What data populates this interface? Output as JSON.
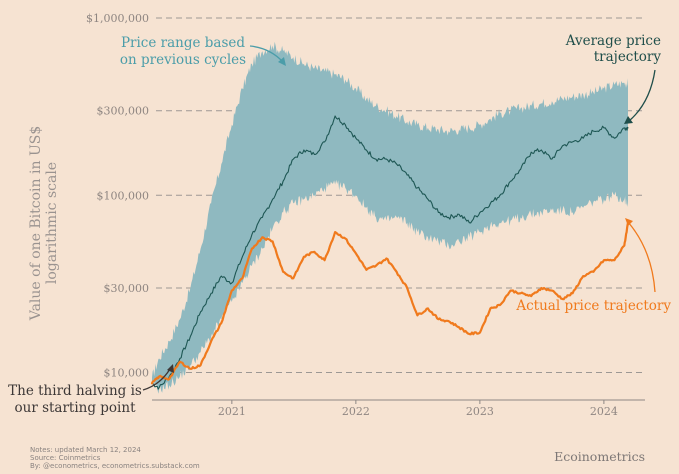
{
  "chart_data": {
    "type": "line",
    "y_scale": "log",
    "ylabel": "Value of one Bitcoin in US$ logarithmic scale",
    "ylabel_lines": [
      "Value of one Bitcoin in US$",
      "logarithmic scale"
    ],
    "ylim": [
      7000,
      1000000
    ],
    "xlim": [
      "2020-05-11",
      "2024-05-01"
    ],
    "y_ticks": [
      {
        "value": 10000,
        "label": "$10,000"
      },
      {
        "value": 30000,
        "label": "$30,000"
      },
      {
        "value": 100000,
        "label": "$100,000"
      },
      {
        "value": 300000,
        "label": "$300,000"
      },
      {
        "value": 1000000,
        "label": "$1,000,000"
      }
    ],
    "x_ticks": [
      {
        "value": "2021-01-01",
        "label": "2021"
      },
      {
        "value": "2022-01-01",
        "label": "2022"
      },
      {
        "value": "2023-01-01",
        "label": "2023"
      },
      {
        "value": "2024-01-01",
        "label": "2024"
      }
    ],
    "grid": {
      "y": true,
      "x": false
    },
    "colors": {
      "band": "#8fb9c0",
      "average": "#1e5754",
      "actual": "#f07a1d",
      "grid": "#9d9894",
      "axis": "#8d8784",
      "annotation_teal": "#4b9da9",
      "annotation_dark": "#1f4e4a",
      "annotation_orange": "#f07a1d",
      "annotation_black": "#3d3837"
    },
    "series": [
      {
        "key": "band",
        "type": "area",
        "x": [
          "2020-05-11",
          "2020-06-01",
          "2020-07-01",
          "2020-08-01",
          "2020-09-01",
          "2020-10-01",
          "2020-11-01",
          "2020-12-01",
          "2021-01-01",
          "2021-02-01",
          "2021-03-01",
          "2021-04-01",
          "2021-05-01",
          "2021-06-01",
          "2021-07-01",
          "2021-08-01",
          "2021-09-01",
          "2021-10-01",
          "2021-11-01",
          "2021-12-01",
          "2022-01-01",
          "2022-02-01",
          "2022-03-01",
          "2022-04-01",
          "2022-05-01",
          "2022-06-01",
          "2022-07-01",
          "2022-08-01",
          "2022-09-01",
          "2022-10-01",
          "2022-11-01",
          "2022-12-01",
          "2023-01-01",
          "2023-02-01",
          "2023-03-01",
          "2023-04-01",
          "2023-05-01",
          "2023-06-01",
          "2023-07-01",
          "2023-08-01",
          "2023-09-01",
          "2023-10-01",
          "2023-11-01",
          "2023-12-01",
          "2024-01-01",
          "2024-02-01",
          "2024-03-01",
          "2024-03-12"
        ],
        "low": [
          8600,
          8000,
          8500,
          9500,
          11000,
          13000,
          16000,
          20000,
          25000,
          32000,
          40000,
          50000,
          65000,
          80000,
          90000,
          95000,
          100000,
          110000,
          115000,
          110000,
          100000,
          85000,
          75000,
          72000,
          75000,
          70000,
          62000,
          58000,
          55000,
          52000,
          55000,
          58000,
          62000,
          68000,
          70000,
          72000,
          75000,
          78000,
          80000,
          82000,
          82000,
          80000,
          85000,
          92000,
          95000,
          100000,
          95000,
          90000
        ],
        "high": [
          9400,
          12000,
          15000,
          20000,
          30000,
          50000,
          90000,
          150000,
          250000,
          400000,
          550000,
          650000,
          700000,
          650000,
          600000,
          550000,
          520000,
          500000,
          480000,
          450000,
          400000,
          350000,
          320000,
          300000,
          280000,
          260000,
          250000,
          240000,
          235000,
          230000,
          235000,
          240000,
          250000,
          270000,
          290000,
          300000,
          310000,
          320000,
          330000,
          340000,
          350000,
          360000,
          370000,
          380000,
          400000,
          420000,
          430000,
          430000
        ]
      },
      {
        "key": "average",
        "name": "Average price trajectory",
        "type": "line",
        "x": [
          "2020-05-11",
          "2020-06-01",
          "2020-07-01",
          "2020-08-01",
          "2020-09-01",
          "2020-10-01",
          "2020-11-01",
          "2020-12-01",
          "2021-01-01",
          "2021-02-01",
          "2021-03-01",
          "2021-04-01",
          "2021-05-01",
          "2021-06-01",
          "2021-07-01",
          "2021-08-01",
          "2021-09-01",
          "2021-10-01",
          "2021-11-01",
          "2021-12-01",
          "2022-01-01",
          "2022-02-01",
          "2022-03-01",
          "2022-04-01",
          "2022-05-01",
          "2022-06-01",
          "2022-07-01",
          "2022-08-01",
          "2022-09-01",
          "2022-10-01",
          "2022-11-01",
          "2022-12-01",
          "2023-01-01",
          "2023-02-01",
          "2023-03-01",
          "2023-04-01",
          "2023-05-01",
          "2023-06-01",
          "2023-07-01",
          "2023-08-01",
          "2023-09-01",
          "2023-10-01",
          "2023-11-01",
          "2023-12-01",
          "2024-01-01",
          "2024-02-01",
          "2024-03-01",
          "2024-03-12"
        ],
        "values": [
          8700,
          8200,
          9500,
          12000,
          16000,
          22000,
          28000,
          35000,
          32000,
          45000,
          60000,
          75000,
          95000,
          120000,
          160000,
          180000,
          170000,
          200000,
          280000,
          250000,
          210000,
          180000,
          160000,
          160000,
          150000,
          130000,
          110000,
          95000,
          80000,
          75000,
          78000,
          70000,
          80000,
          90000,
          100000,
          120000,
          140000,
          175000,
          180000,
          160000,
          190000,
          200000,
          210000,
          230000,
          240000,
          210000,
          240000,
          240000
        ]
      },
      {
        "key": "actual",
        "name": "Actual price trajectory",
        "type": "line",
        "x": [
          "2020-05-11",
          "2020-06-01",
          "2020-07-01",
          "2020-08-01",
          "2020-09-01",
          "2020-10-01",
          "2020-11-01",
          "2020-12-01",
          "2021-01-01",
          "2021-02-01",
          "2021-03-01",
          "2021-04-01",
          "2021-05-01",
          "2021-06-01",
          "2021-07-01",
          "2021-08-01",
          "2021-09-01",
          "2021-10-01",
          "2021-11-01",
          "2021-12-01",
          "2022-01-01",
          "2022-02-01",
          "2022-03-01",
          "2022-04-01",
          "2022-05-01",
          "2022-06-01",
          "2022-07-01",
          "2022-08-01",
          "2022-09-01",
          "2022-10-01",
          "2022-11-01",
          "2022-12-01",
          "2023-01-01",
          "2023-02-01",
          "2023-03-01",
          "2023-04-01",
          "2023-05-01",
          "2023-06-01",
          "2023-07-01",
          "2023-08-01",
          "2023-09-01",
          "2023-10-01",
          "2023-11-01",
          "2023-12-01",
          "2024-01-01",
          "2024-02-01",
          "2024-03-01",
          "2024-03-12"
        ],
        "values": [
          8700,
          9500,
          9200,
          11500,
          10500,
          11000,
          15000,
          19000,
          29000,
          34000,
          50000,
          58000,
          55000,
          37000,
          34000,
          45000,
          48000,
          43000,
          62000,
          57000,
          47000,
          38000,
          40000,
          44000,
          37000,
          30000,
          21000,
          23000,
          20000,
          19500,
          18000,
          16500,
          16800,
          23000,
          24000,
          29000,
          28000,
          27000,
          30000,
          29000,
          26000,
          28000,
          35000,
          37000,
          43000,
          43000,
          52000,
          70000
        ]
      }
    ],
    "annotations": {
      "band": [
        "Price range based",
        "on previous cycles"
      ],
      "average": [
        "Average price",
        "trajectory"
      ],
      "actual": [
        "Actual price trajectory"
      ],
      "start": [
        "The third halving is",
        "our starting point"
      ]
    }
  },
  "footer": {
    "notes": "Notes: updated March 12, 2024",
    "source": "Source: Coinmetrics",
    "by": "By: @econometrics, econometrics.substack.com",
    "brand": "Ecoinometrics"
  }
}
